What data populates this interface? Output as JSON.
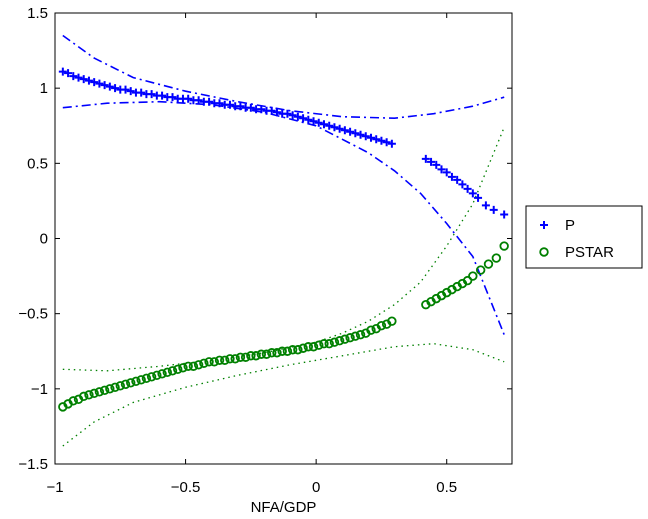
{
  "chart_data": {
    "type": "scatter",
    "title": "",
    "xlabel": "NFA/GDP",
    "ylabel": "",
    "xlim": [
      -1.0,
      0.75
    ],
    "ylim": [
      -1.5,
      1.5
    ],
    "xticks": [
      -1,
      -0.5,
      0,
      0.5
    ],
    "xtick_labels": [
      "−1",
      "−0.5",
      "0",
      "0.5"
    ],
    "yticks": [
      -1.5,
      -1,
      -0.5,
      0,
      0.5,
      1,
      1.5
    ],
    "ytick_labels": [
      "−1.5",
      "−1",
      "−0.5",
      "0",
      "0.5",
      "1",
      "1.5"
    ],
    "grid": false,
    "legend_position": "right",
    "series": [
      {
        "name": "P",
        "marker": "plus",
        "color": "#0000ff",
        "points": [
          [
            -0.97,
            1.11
          ],
          [
            -0.95,
            1.1
          ],
          [
            -0.93,
            1.08
          ],
          [
            -0.91,
            1.07
          ],
          [
            -0.89,
            1.06
          ],
          [
            -0.87,
            1.05
          ],
          [
            -0.85,
            1.04
          ],
          [
            -0.83,
            1.03
          ],
          [
            -0.81,
            1.02
          ],
          [
            -0.79,
            1.01
          ],
          [
            -0.77,
            1.0
          ],
          [
            -0.75,
            0.99
          ],
          [
            -0.73,
            0.99
          ],
          [
            -0.71,
            0.98
          ],
          [
            -0.69,
            0.97
          ],
          [
            -0.67,
            0.97
          ],
          [
            -0.65,
            0.96
          ],
          [
            -0.63,
            0.96
          ],
          [
            -0.61,
            0.95
          ],
          [
            -0.59,
            0.95
          ],
          [
            -0.57,
            0.94
          ],
          [
            -0.55,
            0.94
          ],
          [
            -0.53,
            0.93
          ],
          [
            -0.51,
            0.93
          ],
          [
            -0.49,
            0.93
          ],
          [
            -0.47,
            0.92
          ],
          [
            -0.45,
            0.92
          ],
          [
            -0.43,
            0.91
          ],
          [
            -0.41,
            0.91
          ],
          [
            -0.39,
            0.9
          ],
          [
            -0.37,
            0.9
          ],
          [
            -0.35,
            0.89
          ],
          [
            -0.33,
            0.89
          ],
          [
            -0.31,
            0.88
          ],
          [
            -0.29,
            0.88
          ],
          [
            -0.27,
            0.87
          ],
          [
            -0.25,
            0.87
          ],
          [
            -0.23,
            0.86
          ],
          [
            -0.21,
            0.86
          ],
          [
            -0.19,
            0.85
          ],
          [
            -0.17,
            0.85
          ],
          [
            -0.15,
            0.84
          ],
          [
            -0.13,
            0.83
          ],
          [
            -0.11,
            0.83
          ],
          [
            -0.09,
            0.82
          ],
          [
            -0.07,
            0.81
          ],
          [
            -0.05,
            0.8
          ],
          [
            -0.03,
            0.79
          ],
          [
            -0.01,
            0.78
          ],
          [
            0.01,
            0.77
          ],
          [
            0.03,
            0.76
          ],
          [
            0.05,
            0.75
          ],
          [
            0.07,
            0.74
          ],
          [
            0.09,
            0.73
          ],
          [
            0.11,
            0.72
          ],
          [
            0.13,
            0.71
          ],
          [
            0.15,
            0.7
          ],
          [
            0.17,
            0.69
          ],
          [
            0.19,
            0.68
          ],
          [
            0.21,
            0.67
          ],
          [
            0.23,
            0.66
          ],
          [
            0.25,
            0.65
          ],
          [
            0.27,
            0.64
          ],
          [
            0.29,
            0.63
          ],
          [
            0.42,
            0.53
          ],
          [
            0.44,
            0.51
          ],
          [
            0.46,
            0.49
          ],
          [
            0.48,
            0.46
          ],
          [
            0.5,
            0.44
          ],
          [
            0.52,
            0.41
          ],
          [
            0.54,
            0.39
          ],
          [
            0.56,
            0.36
          ],
          [
            0.58,
            0.33
          ],
          [
            0.6,
            0.3
          ],
          [
            0.62,
            0.27
          ],
          [
            0.65,
            0.22
          ],
          [
            0.68,
            0.19
          ],
          [
            0.72,
            0.16
          ]
        ],
        "band_upper": [
          [
            -0.97,
            1.35
          ],
          [
            -0.85,
            1.2
          ],
          [
            -0.7,
            1.07
          ],
          [
            -0.5,
            0.98
          ],
          [
            -0.3,
            0.91
          ],
          [
            -0.1,
            0.85
          ],
          [
            0.1,
            0.81
          ],
          [
            0.3,
            0.8
          ],
          [
            0.45,
            0.83
          ],
          [
            0.6,
            0.88
          ],
          [
            0.72,
            0.94
          ]
        ],
        "band_lower": [
          [
            -0.97,
            0.87
          ],
          [
            -0.8,
            0.9
          ],
          [
            -0.6,
            0.91
          ],
          [
            -0.4,
            0.89
          ],
          [
            -0.2,
            0.84
          ],
          [
            0.0,
            0.75
          ],
          [
            0.1,
            0.66
          ],
          [
            0.2,
            0.57
          ],
          [
            0.3,
            0.45
          ],
          [
            0.4,
            0.3
          ],
          [
            0.5,
            0.1
          ],
          [
            0.6,
            -0.12
          ],
          [
            0.72,
            -0.64
          ]
        ]
      },
      {
        "name": "PSTAR",
        "marker": "circle",
        "color": "#008000",
        "points": [
          [
            -0.97,
            -1.12
          ],
          [
            -0.95,
            -1.1
          ],
          [
            -0.93,
            -1.08
          ],
          [
            -0.91,
            -1.07
          ],
          [
            -0.89,
            -1.05
          ],
          [
            -0.87,
            -1.04
          ],
          [
            -0.85,
            -1.03
          ],
          [
            -0.83,
            -1.02
          ],
          [
            -0.81,
            -1.01
          ],
          [
            -0.79,
            -1.0
          ],
          [
            -0.77,
            -0.99
          ],
          [
            -0.75,
            -0.98
          ],
          [
            -0.73,
            -0.97
          ],
          [
            -0.71,
            -0.96
          ],
          [
            -0.69,
            -0.95
          ],
          [
            -0.67,
            -0.94
          ],
          [
            -0.65,
            -0.93
          ],
          [
            -0.63,
            -0.92
          ],
          [
            -0.61,
            -0.91
          ],
          [
            -0.59,
            -0.9
          ],
          [
            -0.57,
            -0.89
          ],
          [
            -0.55,
            -0.88
          ],
          [
            -0.53,
            -0.87
          ],
          [
            -0.51,
            -0.86
          ],
          [
            -0.49,
            -0.85
          ],
          [
            -0.47,
            -0.85
          ],
          [
            -0.45,
            -0.84
          ],
          [
            -0.43,
            -0.83
          ],
          [
            -0.41,
            -0.82
          ],
          [
            -0.39,
            -0.82
          ],
          [
            -0.37,
            -0.81
          ],
          [
            -0.35,
            -0.81
          ],
          [
            -0.33,
            -0.8
          ],
          [
            -0.31,
            -0.8
          ],
          [
            -0.29,
            -0.79
          ],
          [
            -0.27,
            -0.79
          ],
          [
            -0.25,
            -0.78
          ],
          [
            -0.23,
            -0.78
          ],
          [
            -0.21,
            -0.77
          ],
          [
            -0.19,
            -0.77
          ],
          [
            -0.17,
            -0.76
          ],
          [
            -0.15,
            -0.76
          ],
          [
            -0.13,
            -0.75
          ],
          [
            -0.11,
            -0.75
          ],
          [
            -0.09,
            -0.74
          ],
          [
            -0.07,
            -0.74
          ],
          [
            -0.05,
            -0.73
          ],
          [
            -0.03,
            -0.72
          ],
          [
            -0.01,
            -0.72
          ],
          [
            0.01,
            -0.71
          ],
          [
            0.03,
            -0.7
          ],
          [
            0.05,
            -0.7
          ],
          [
            0.07,
            -0.69
          ],
          [
            0.09,
            -0.68
          ],
          [
            0.11,
            -0.67
          ],
          [
            0.13,
            -0.66
          ],
          [
            0.15,
            -0.65
          ],
          [
            0.17,
            -0.64
          ],
          [
            0.19,
            -0.63
          ],
          [
            0.21,
            -0.61
          ],
          [
            0.23,
            -0.6
          ],
          [
            0.25,
            -0.58
          ],
          [
            0.27,
            -0.57
          ],
          [
            0.29,
            -0.55
          ],
          [
            0.42,
            -0.44
          ],
          [
            0.44,
            -0.42
          ],
          [
            0.46,
            -0.4
          ],
          [
            0.48,
            -0.38
          ],
          [
            0.5,
            -0.36
          ],
          [
            0.52,
            -0.34
          ],
          [
            0.54,
            -0.32
          ],
          [
            0.56,
            -0.3
          ],
          [
            0.58,
            -0.28
          ],
          [
            0.6,
            -0.25
          ],
          [
            0.63,
            -0.21
          ],
          [
            0.66,
            -0.17
          ],
          [
            0.69,
            -0.13
          ],
          [
            0.72,
            -0.05
          ]
        ],
        "band_upper": [
          [
            -0.97,
            -0.87
          ],
          [
            -0.8,
            -0.88
          ],
          [
            -0.6,
            -0.85
          ],
          [
            -0.4,
            -0.81
          ],
          [
            -0.2,
            -0.76
          ],
          [
            0.0,
            -0.69
          ],
          [
            0.1,
            -0.63
          ],
          [
            0.2,
            -0.55
          ],
          [
            0.3,
            -0.44
          ],
          [
            0.4,
            -0.29
          ],
          [
            0.5,
            -0.05
          ],
          [
            0.6,
            0.23
          ],
          [
            0.72,
            0.74
          ]
        ],
        "band_lower": [
          [
            -0.97,
            -1.38
          ],
          [
            -0.85,
            -1.22
          ],
          [
            -0.7,
            -1.09
          ],
          [
            -0.5,
            -0.99
          ],
          [
            -0.3,
            -0.91
          ],
          [
            -0.1,
            -0.84
          ],
          [
            0.1,
            -0.78
          ],
          [
            0.3,
            -0.72
          ],
          [
            0.45,
            -0.7
          ],
          [
            0.6,
            -0.74
          ],
          [
            0.72,
            -0.82
          ]
        ]
      }
    ]
  }
}
